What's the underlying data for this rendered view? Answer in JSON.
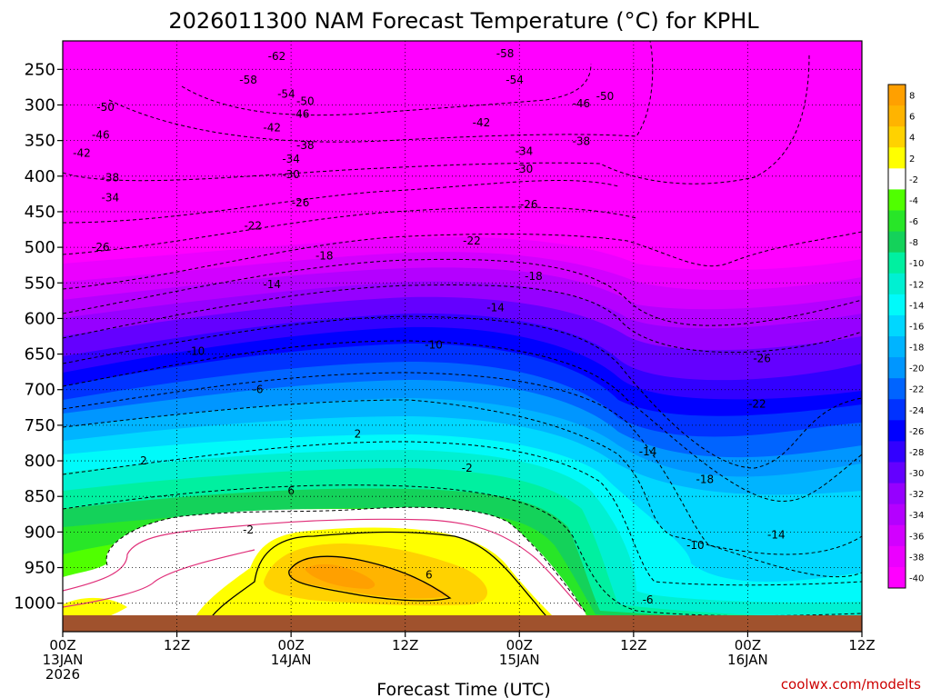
{
  "chart_data": {
    "type": "heatmap",
    "title": "2026011300 NAM Forecast Temperature (°C) for KPHL",
    "xlabel": "Forecast Time (UTC)",
    "ylabel": "",
    "credit": "coolwx.com/modelts",
    "x_hours_range": [
      0,
      84
    ],
    "y_pressure_range": [
      210,
      1040
    ],
    "y_ticks": [
      250,
      300,
      350,
      400,
      450,
      500,
      550,
      600,
      650,
      700,
      750,
      800,
      850,
      900,
      950,
      1000
    ],
    "x_ticks": [
      {
        "hour": 0,
        "line1": "00Z",
        "line2": "13JAN",
        "line3": "2026"
      },
      {
        "hour": 12,
        "line1": "12Z",
        "line2": "",
        "line3": ""
      },
      {
        "hour": 24,
        "line1": "00Z",
        "line2": "14JAN",
        "line3": ""
      },
      {
        "hour": 36,
        "line1": "12Z",
        "line2": "",
        "line3": ""
      },
      {
        "hour": 48,
        "line1": "00Z",
        "line2": "15JAN",
        "line3": ""
      },
      {
        "hour": 60,
        "line1": "12Z",
        "line2": "",
        "line3": ""
      },
      {
        "hour": 72,
        "line1": "00Z",
        "line2": "16JAN",
        "line3": ""
      },
      {
        "hour": 84,
        "line1": "12Z",
        "line2": "",
        "line3": ""
      }
    ],
    "colorbar": {
      "levels": [
        8,
        6,
        4,
        2,
        -2,
        -4,
        -6,
        -8,
        -10,
        -12,
        -14,
        -16,
        -18,
        -20,
        -22,
        -24,
        -26,
        -28,
        -30,
        -32,
        -34,
        -36,
        -38,
        -40
      ],
      "colors": [
        "#ffa000",
        "#ffb400",
        "#ffd200",
        "#ffff00",
        "#ffffff",
        "#50ff00",
        "#28e628",
        "#14d25a",
        "#00f0a0",
        "#00f0d2",
        "#00fafa",
        "#00d7ff",
        "#00b4ff",
        "#0096ff",
        "#0064ff",
        "#0032ff",
        "#0000ff",
        "#3200ff",
        "#6400ff",
        "#9600ff",
        "#b400ff",
        "#d200ff",
        "#eb00ff",
        "#ff00ff"
      ]
    },
    "contour_labels": [
      {
        "text": "-62",
        "h": 22.5,
        "p": 232
      },
      {
        "text": "-58",
        "h": 46.5,
        "p": 228
      },
      {
        "text": "-58",
        "h": 19.5,
        "p": 265
      },
      {
        "text": "-54",
        "h": 47.5,
        "p": 265
      },
      {
        "text": "-54",
        "h": 23.5,
        "p": 285
      },
      {
        "text": "-50",
        "h": 57.0,
        "p": 288
      },
      {
        "text": "-50",
        "h": 4.5,
        "p": 303
      },
      {
        "text": "-50",
        "h": 25.5,
        "p": 295
      },
      {
        "text": "-46",
        "h": 54.5,
        "p": 298
      },
      {
        "text": "-46",
        "h": 25.0,
        "p": 313
      },
      {
        "text": "-42",
        "h": 22.0,
        "p": 332
      },
      {
        "text": "-42",
        "h": 44.0,
        "p": 325
      },
      {
        "text": "-46",
        "h": 4.0,
        "p": 342
      },
      {
        "text": "-42",
        "h": 2.0,
        "p": 368
      },
      {
        "text": "-38",
        "h": 25.5,
        "p": 357
      },
      {
        "text": "-38",
        "h": 54.5,
        "p": 351
      },
      {
        "text": "-34",
        "h": 48.5,
        "p": 365
      },
      {
        "text": "-34",
        "h": 24.0,
        "p": 376
      },
      {
        "text": "-38",
        "h": 5.0,
        "p": 402
      },
      {
        "text": "-30",
        "h": 24.0,
        "p": 398
      },
      {
        "text": "-30",
        "h": 48.5,
        "p": 390
      },
      {
        "text": "-34",
        "h": 5.0,
        "p": 430
      },
      {
        "text": "-26",
        "h": 25.0,
        "p": 437
      },
      {
        "text": "-26",
        "h": 49.0,
        "p": 440
      },
      {
        "text": "-22",
        "h": 20.0,
        "p": 470
      },
      {
        "text": "-26",
        "h": 4.0,
        "p": 500
      },
      {
        "text": "-22",
        "h": 43.0,
        "p": 491
      },
      {
        "text": "-18",
        "h": 27.5,
        "p": 512
      },
      {
        "text": "-18",
        "h": 49.5,
        "p": 541
      },
      {
        "text": "-14",
        "h": 22.0,
        "p": 552
      },
      {
        "text": "-14",
        "h": 45.5,
        "p": 585
      },
      {
        "text": "-10",
        "h": 14.0,
        "p": 646
      },
      {
        "text": "-10",
        "h": 39.0,
        "p": 637
      },
      {
        "text": "-26",
        "h": 73.5,
        "p": 656
      },
      {
        "text": "-6",
        "h": 20.5,
        "p": 700
      },
      {
        "text": "-22",
        "h": 73.0,
        "p": 720
      },
      {
        "text": "2",
        "h": 31.0,
        "p": 762
      },
      {
        "text": "-14",
        "h": 61.5,
        "p": 787
      },
      {
        "text": "2",
        "h": 8.5,
        "p": 800
      },
      {
        "text": "-2",
        "h": 42.5,
        "p": 810
      },
      {
        "text": "-18",
        "h": 67.5,
        "p": 826
      },
      {
        "text": "6",
        "h": 24.0,
        "p": 842
      },
      {
        "text": "-2",
        "h": 19.5,
        "p": 897
      },
      {
        "text": "-14",
        "h": 75.0,
        "p": 904
      },
      {
        "text": "-10",
        "h": 66.5,
        "p": 919
      },
      {
        "text": "6",
        "h": 38.5,
        "p": 960
      },
      {
        "text": "-6",
        "h": 61.5,
        "p": 995
      }
    ]
  }
}
